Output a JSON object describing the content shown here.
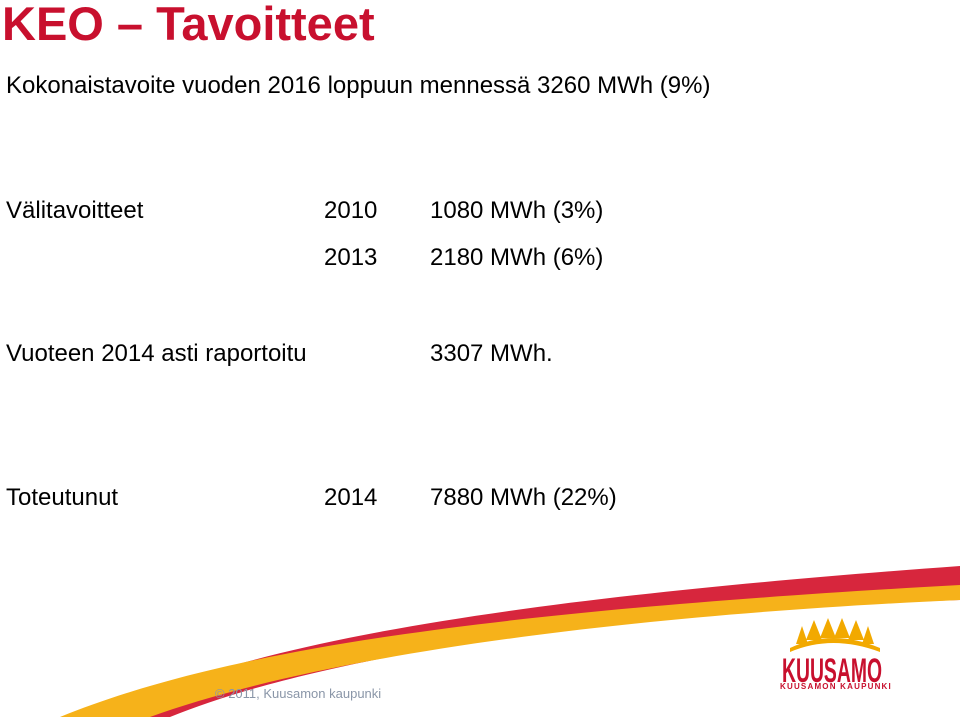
{
  "title": "KEO – Tavoitteet",
  "goal": "Kokonaistavoite vuoden 2016 loppuun mennessä 3260 MWh (9%)",
  "milestones": {
    "label": "Välitavoitteet",
    "rows": [
      {
        "year": "2010",
        "value": "1080 MWh (3%)"
      },
      {
        "year": "2013",
        "value": "2180 MWh (6%)"
      }
    ]
  },
  "reported": {
    "label": "Vuoteen 2014 asti raportoitu",
    "value": "3307 MWh."
  },
  "realized": {
    "label": "Toteutunut",
    "year": "2014",
    "value": "7880 MWh (22%)"
  },
  "footer": {
    "copyright": "© 2011, Kuusamon kaupunki",
    "logo_word": "KUUSAMO",
    "logo_subtitle": "KUUSAMON KAUPUNKI"
  },
  "colors": {
    "title": "#c8102e",
    "swoosh_red": "#d7263d",
    "swoosh_yellow": "#f6b21a",
    "logo_gold": "#f2a900"
  }
}
